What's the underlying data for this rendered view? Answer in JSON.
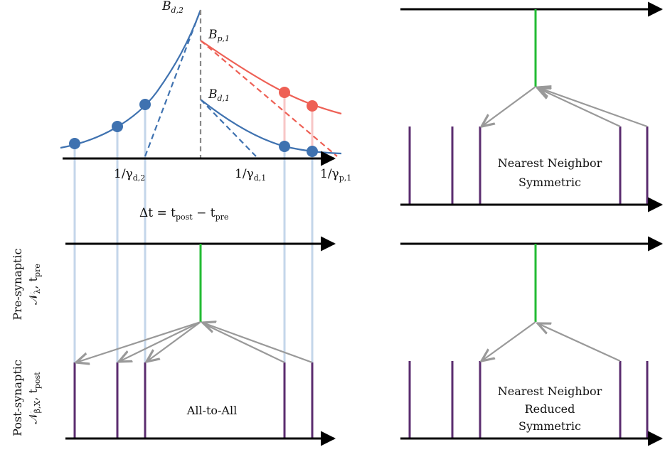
{
  "top_left": {
    "axis_label_parts": [
      "Δt = t",
      "post",
      " − t",
      "pre"
    ],
    "tick_labels": [
      {
        "base": "1/γ",
        "sub": "d,2"
      },
      {
        "base": "1/γ",
        "sub": "d,1"
      },
      {
        "base": "1/γ",
        "sub": "p,1"
      }
    ],
    "peak_labels": [
      {
        "base": "B",
        "sub": "d,2"
      },
      {
        "base": "B",
        "sub": "p,1"
      },
      {
        "base": "B",
        "sub": "d,1"
      }
    ]
  },
  "y_labels": {
    "pre": {
      "line1": "Pre-synaptic",
      "line2_parts": [
        "𝒩",
        "λ",
        ", t",
        "pre"
      ]
    },
    "post": {
      "line1": "Post-synaptic",
      "line2_parts": [
        "𝒩",
        "β,X",
        ", t",
        "post"
      ]
    }
  },
  "panels": {
    "all_to_all": {
      "line1": "All-to-All"
    },
    "nn_symmetric": {
      "line1": "Nearest Neighbor",
      "line2": "Symmetric"
    },
    "nn_reduced_symmetric": {
      "line1": "Nearest Neighbor",
      "line2": "Reduced",
      "line3": "Symmetric"
    }
  },
  "colors": {
    "blue": "#3f72b0",
    "red": "#ee6055",
    "green": "#22bb33",
    "purple": "#5b2c6f",
    "gray": "#999999",
    "lightblue": "#c4d6ea",
    "black": "#000000"
  }
}
